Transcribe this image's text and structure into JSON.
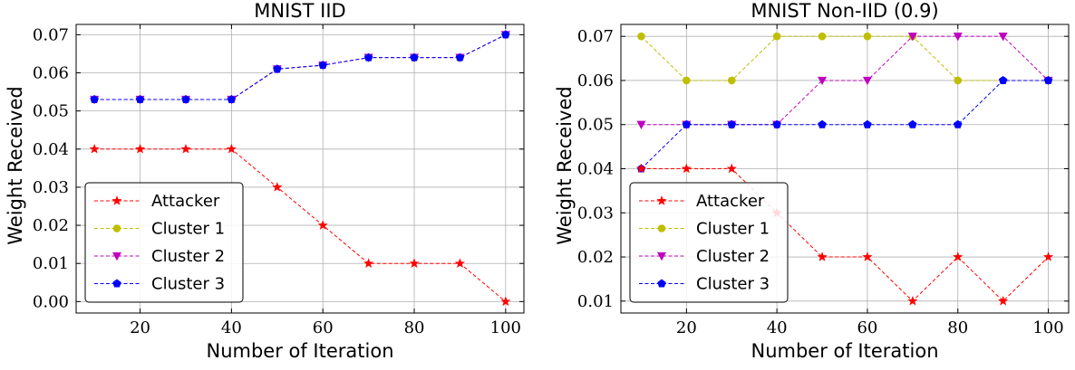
{
  "chart_data": [
    {
      "type": "line",
      "title": "MNIST IID",
      "xlabel": "Number of Iteration",
      "ylabel": "Weight Received",
      "x": [
        10,
        20,
        30,
        40,
        50,
        60,
        70,
        80,
        90,
        100
      ],
      "xlim": [
        6,
        104
      ],
      "ylim": [
        -0.003,
        0.0727
      ],
      "xticks": [
        20,
        40,
        60,
        80,
        100
      ],
      "xtick_labels": [
        "20",
        "40",
        "60",
        "80",
        "100"
      ],
      "yticks": [
        0.0,
        0.01,
        0.02,
        0.03,
        0.04,
        0.05,
        0.06,
        0.07
      ],
      "ytick_labels": [
        "0.00",
        "0.01",
        "0.02",
        "0.03",
        "0.04",
        "0.05",
        "0.06",
        "0.07"
      ],
      "grid": true,
      "legend_position": "bottom-left",
      "series": [
        {
          "name": "Attacker",
          "color": "#ff0000",
          "marker": "star",
          "values": [
            0.04,
            0.04,
            0.04,
            0.04,
            0.03,
            0.02,
            0.01,
            0.01,
            0.01,
            0.0
          ]
        },
        {
          "name": "Cluster 1",
          "color": "#bfbf00",
          "marker": "circle",
          "values": [
            0.053,
            0.053,
            0.053,
            0.053,
            0.061,
            0.062,
            0.064,
            0.064,
            0.064,
            0.07
          ]
        },
        {
          "name": "Cluster 2",
          "color": "#bf00bf",
          "marker": "triangle-down",
          "values": [
            0.053,
            0.053,
            0.053,
            0.053,
            0.061,
            0.062,
            0.064,
            0.064,
            0.064,
            0.07
          ]
        },
        {
          "name": "Cluster 3",
          "color": "#0000ff",
          "marker": "pentagon",
          "values": [
            0.053,
            0.053,
            0.053,
            0.053,
            0.061,
            0.062,
            0.064,
            0.064,
            0.064,
            0.07
          ]
        }
      ]
    },
    {
      "type": "line",
      "title": "MNIST Non-IID (0.9)",
      "xlabel": "Number of Iteration",
      "ylabel": "Weight Received",
      "x": [
        10,
        20,
        30,
        40,
        50,
        60,
        70,
        80,
        90,
        100
      ],
      "xlim": [
        5.5,
        104.5
      ],
      "ylim": [
        0.0073,
        0.0727
      ],
      "xticks": [
        20,
        40,
        60,
        80,
        100
      ],
      "xtick_labels": [
        "20",
        "40",
        "60",
        "80",
        "100"
      ],
      "yticks": [
        0.01,
        0.02,
        0.03,
        0.04,
        0.05,
        0.06,
        0.07
      ],
      "ytick_labels": [
        "0.01",
        "0.02",
        "0.03",
        "0.04",
        "0.05",
        "0.06",
        "0.07"
      ],
      "grid": true,
      "legend_position": "bottom-left",
      "series": [
        {
          "name": "Attacker",
          "color": "#ff0000",
          "marker": "star",
          "values": [
            0.04,
            0.04,
            0.04,
            0.03,
            0.02,
            0.02,
            0.01,
            0.02,
            0.01,
            0.02
          ]
        },
        {
          "name": "Cluster 1",
          "color": "#bfbf00",
          "marker": "circle",
          "values": [
            0.07,
            0.06,
            0.06,
            0.07,
            0.07,
            0.07,
            0.07,
            0.06,
            0.06,
            0.06
          ]
        },
        {
          "name": "Cluster 2",
          "color": "#bf00bf",
          "marker": "triangle-down",
          "values": [
            0.05,
            0.05,
            0.05,
            0.05,
            0.06,
            0.06,
            0.07,
            0.07,
            0.07,
            0.06
          ]
        },
        {
          "name": "Cluster 3",
          "color": "#0000ff",
          "marker": "pentagon",
          "values": [
            0.04,
            0.05,
            0.05,
            0.05,
            0.05,
            0.05,
            0.05,
            0.05,
            0.06,
            0.06
          ]
        }
      ]
    }
  ]
}
